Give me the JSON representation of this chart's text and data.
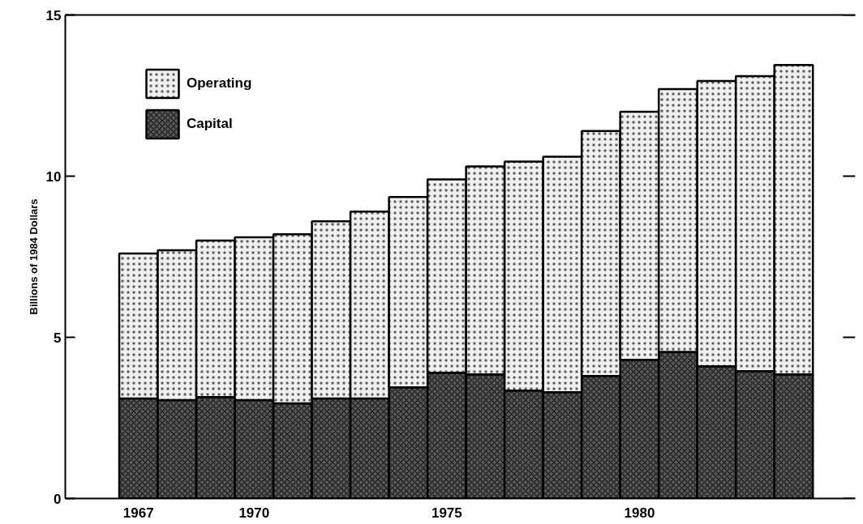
{
  "chart_data": {
    "type": "bar",
    "stacked": true,
    "ylabel": "Billions of 1984 Dollars",
    "categories": [
      "1967",
      null,
      null,
      "1970",
      null,
      null,
      null,
      null,
      "1975",
      null,
      null,
      null,
      null,
      "1980",
      null,
      null,
      null,
      null
    ],
    "series": [
      {
        "name": "Capital",
        "color": "#5a5a5a",
        "values": [
          3.1,
          3.05,
          3.15,
          3.05,
          2.95,
          3.1,
          3.1,
          3.45,
          3.9,
          3.85,
          3.35,
          3.3,
          3.8,
          4.3,
          4.55,
          4.1,
          3.95,
          3.85
        ]
      },
      {
        "name": "Operating",
        "color": "#f0f0f0",
        "values": [
          4.5,
          4.65,
          4.85,
          5.05,
          5.25,
          5.5,
          5.8,
          5.9,
          6.0,
          6.45,
          7.1,
          7.3,
          7.6,
          7.7,
          8.15,
          8.85,
          9.15,
          9.6
        ]
      }
    ],
    "ylim": [
      0,
      15
    ],
    "yticks": [
      0,
      5,
      10,
      15
    ],
    "legend": "top left",
    "grid": false
  }
}
